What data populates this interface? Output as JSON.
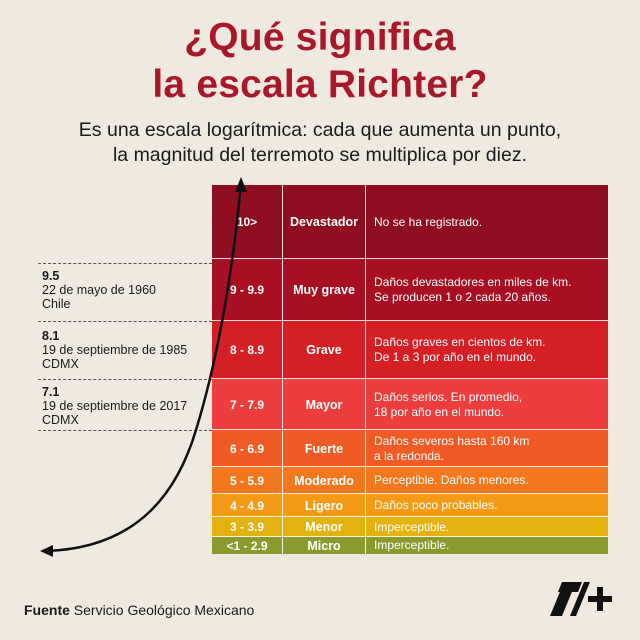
{
  "title": {
    "line1": "¿Qué significa",
    "line2": "la escala Richter?"
  },
  "subtitle": {
    "line1": "Es una escala logarítmica: cada que aumenta un punto,",
    "line2": "la magnitud del terremoto se multiplica por diez."
  },
  "scale_rows": [
    {
      "range": "10>",
      "category": "Devastador",
      "desc_line1": "No se ha registrado.",
      "desc_line2": "",
      "color": "#8f0d20"
    },
    {
      "range": "9 - 9.9",
      "category": "Muy grave",
      "desc_line1": "Daños devastadores en miles de km.",
      "desc_line2": "Se producen 1 o 2 cada 20 años.",
      "color": "#a80f22"
    },
    {
      "range": "8 - 8.9",
      "category": "Grave",
      "desc_line1": "Daños graves en cientos de km.",
      "desc_line2": "De 1 a 3 por año en el mundo.",
      "color": "#d41f24"
    },
    {
      "range": "7 - 7.9",
      "category": "Mayor",
      "desc_line1": "Daños serios. En promedio,",
      "desc_line2": "18 por año en el mundo.",
      "color": "#ec3e3e"
    },
    {
      "range": "6 - 6.9",
      "category": "Fuerte",
      "desc_line1": "Daños severos hasta 160 km",
      "desc_line2": "a la redonda.",
      "color": "#f05a24"
    },
    {
      "range": "5 - 5.9",
      "category": "Moderado",
      "desc_line1": "Perceptible. Daños menores.",
      "desc_line2": "",
      "color": "#f3781d"
    },
    {
      "range": "4 - 4.9",
      "category": "Ligero",
      "desc_line1": "Daños poco probables.",
      "desc_line2": "",
      "color": "#f59a17"
    },
    {
      "range": "3 - 3.9",
      "category": "Menor",
      "desc_line1": "Imperceptible.",
      "desc_line2": "",
      "color": "#e3b110"
    },
    {
      "range": "<1 - 2.9",
      "category": "Micro",
      "desc_line1": "Imperceptible.",
      "desc_line2": "",
      "color": "#8a9a2c"
    }
  ],
  "annotations": [
    {
      "magnitude": "9.5",
      "date": "22 de mayo de 1960",
      "place": "Chile"
    },
    {
      "magnitude": "8.1",
      "date": "19 de septiembre de 1985",
      "place": "CDMX"
    },
    {
      "magnitude": "7.1",
      "date": "19 de septiembre de 2017",
      "place": "CDMX"
    }
  ],
  "footer": {
    "label": "Fuente",
    "source": "Servicio Geológico Mexicano"
  },
  "logo": "n-plus-logo"
}
